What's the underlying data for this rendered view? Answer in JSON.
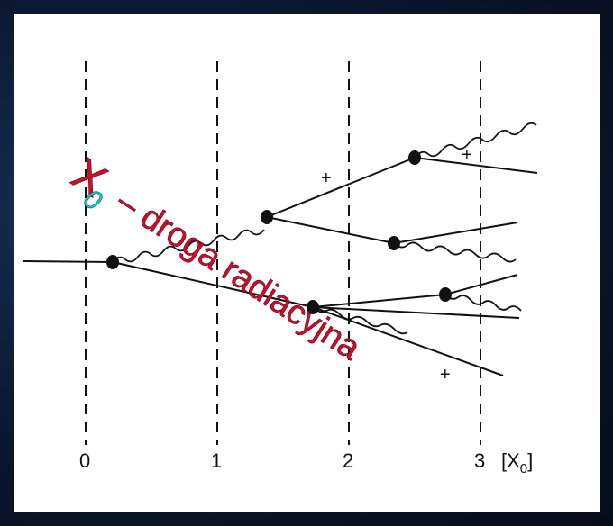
{
  "diagram": {
    "axis_ticks": [
      "0",
      "1",
      "2",
      "3"
    ],
    "axis_unit": "[X",
    "axis_unit_sub": "0",
    "axis_unit_close": "]",
    "sign_labels": [
      "+",
      "+",
      "+"
    ]
  },
  "overlay": {
    "symbol": "X",
    "symbol_subscript": "0",
    "caption": "– droga radiacyjna"
  },
  "colors": {
    "background": "#0b1526",
    "panel": "#ffffff",
    "title_red": "#c8102e",
    "subscript_cyan": "#19c6d6"
  }
}
